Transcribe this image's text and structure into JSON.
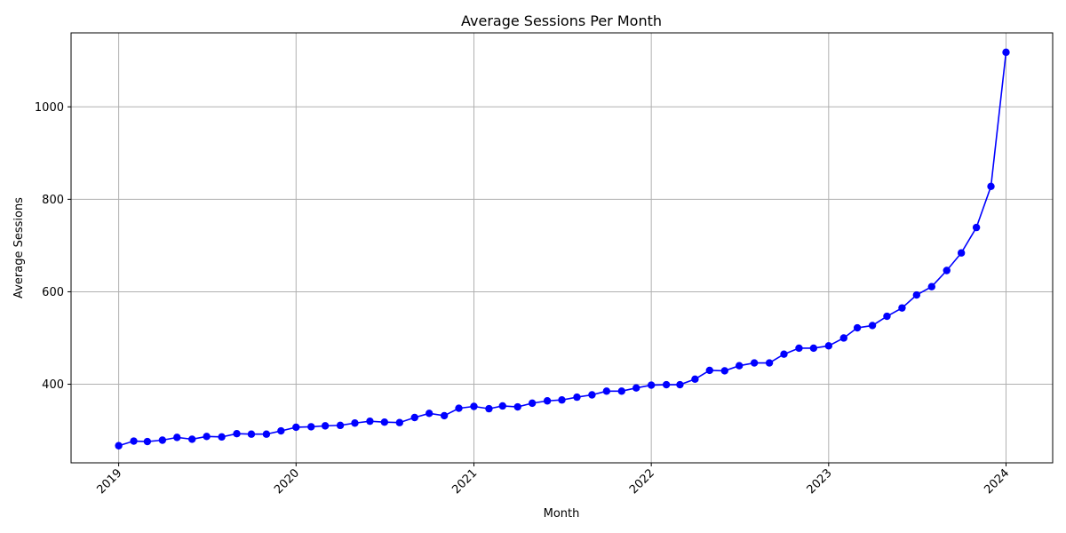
{
  "chart_data": {
    "type": "line",
    "title": "Average Sessions Per Month",
    "xlabel": "Month",
    "ylabel": "Average Sessions",
    "x_ticks": [
      "2019",
      "2020",
      "2021",
      "2022",
      "2023",
      "2024"
    ],
    "y_ticks": [
      400,
      600,
      800,
      1000
    ],
    "xlim": [
      "2018-09-25",
      "2024-04-06"
    ],
    "ylim": [
      230,
      1160
    ],
    "grid": true,
    "line_color": "#0000ff",
    "marker": "circle",
    "x": [
      "2019-01",
      "2019-02",
      "2019-03",
      "2019-04",
      "2019-05",
      "2019-06",
      "2019-07",
      "2019-08",
      "2019-09",
      "2019-10",
      "2019-11",
      "2019-12",
      "2020-01",
      "2020-02",
      "2020-03",
      "2020-04",
      "2020-05",
      "2020-06",
      "2020-07",
      "2020-08",
      "2020-09",
      "2020-10",
      "2020-11",
      "2020-12",
      "2021-01",
      "2021-02",
      "2021-03",
      "2021-04",
      "2021-05",
      "2021-06",
      "2021-07",
      "2021-08",
      "2021-09",
      "2021-10",
      "2021-11",
      "2021-12",
      "2022-01",
      "2022-02",
      "2022-03",
      "2022-04",
      "2022-05",
      "2022-06",
      "2022-07",
      "2022-08",
      "2022-09",
      "2022-10",
      "2022-11",
      "2022-12",
      "2023-01",
      "2023-02",
      "2023-03",
      "2023-04",
      "2023-05",
      "2023-06",
      "2023-07",
      "2023-08",
      "2023-09",
      "2023-10",
      "2023-11",
      "2023-12",
      "2024-01"
    ],
    "values": [
      267,
      277,
      276,
      279,
      285,
      281,
      287,
      286,
      293,
      292,
      292,
      299,
      307,
      308,
      310,
      311,
      316,
      320,
      318,
      317,
      328,
      337,
      332,
      348,
      352,
      347,
      353,
      351,
      359,
      364,
      366,
      372,
      377,
      385,
      385,
      392,
      398,
      399,
      399,
      411,
      430,
      429,
      440,
      446,
      446,
      465,
      478,
      478,
      483,
      500,
      522,
      527,
      547,
      565,
      593,
      611,
      646,
      684,
      739,
      828,
      1118
    ]
  }
}
